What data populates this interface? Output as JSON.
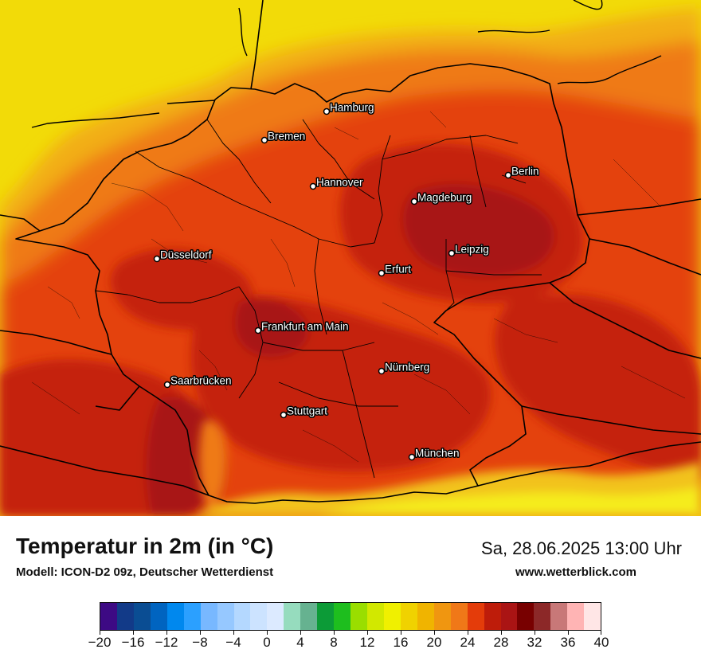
{
  "header": {
    "title": "Temperatur in 2m (in °C)",
    "model": "Modell: ICON-D2 09z, Deutscher Wetterdienst",
    "datetime": "Sa, 28.06.2025 13:00 Uhr",
    "website": "www.wetterblick.com"
  },
  "cities": [
    {
      "name": "Hamburg"
    },
    {
      "name": "Bremen"
    },
    {
      "name": "Berlin"
    },
    {
      "name": "Hannover"
    },
    {
      "name": "Magdeburg"
    },
    {
      "name": "Düsseldorf"
    },
    {
      "name": "Leipzig"
    },
    {
      "name": "Erfurt"
    },
    {
      "name": "Frankfurt am Main"
    },
    {
      "name": "Nürnberg"
    },
    {
      "name": "Saarbrücken"
    },
    {
      "name": "Stuttgart"
    },
    {
      "name": "München"
    }
  ],
  "legend": {
    "min": -20,
    "max": 40,
    "step": 2,
    "tick_labels": [
      "−20",
      "−16",
      "−12",
      "−8",
      "−4",
      "0",
      "4",
      "8",
      "12",
      "16",
      "20",
      "24",
      "28",
      "32",
      "36",
      "40"
    ],
    "colors": [
      "#3d0a84",
      "#123a88",
      "#0a4d93",
      "#0064c0",
      "#0088ee",
      "#2ba0ff",
      "#78b8ff",
      "#96c8ff",
      "#b4d8ff",
      "#cce3ff",
      "#dceaff",
      "#96dcbe",
      "#66b290",
      "#0c9b37",
      "#1ebe1e",
      "#9ade00",
      "#d2e800",
      "#f0f000",
      "#f0d200",
      "#f0b400",
      "#f09610",
      "#f07818",
      "#e43c0a",
      "#be1c0a",
      "#aa1414",
      "#780000",
      "#8c2828",
      "#c87878",
      "#ffb4b4",
      "#ffe6e6"
    ]
  },
  "map_colors": {
    "sea": "#f2db08",
    "coast": "#f2ae16",
    "warm": "#ef7a16",
    "hot": "#e4420e",
    "very_hot": "#c5200d",
    "extreme": "#a81412",
    "alps_cool": "#f2c21a",
    "alps_peak": "#f5ec1e"
  }
}
